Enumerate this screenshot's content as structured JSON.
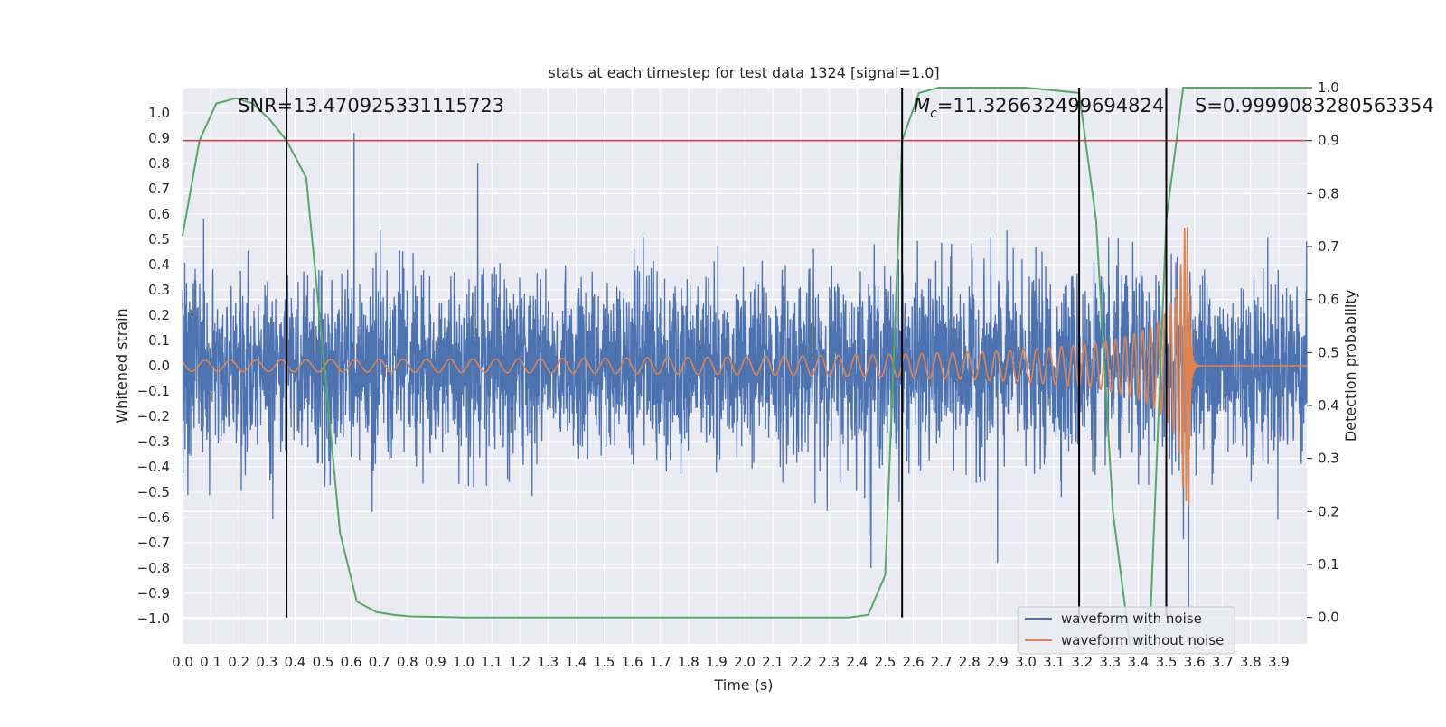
{
  "chart_data": {
    "type": "line",
    "title": "stats at each timestep for test data 1324 [signal=1.0]",
    "xlabel": "Time (s)",
    "ylabel": "Whitened strain",
    "y2label": "Detection probability",
    "xlim": [
      0.0,
      4.0
    ],
    "ylim": [
      -1.1,
      1.1
    ],
    "y2lim": [
      -0.05,
      1.0
    ],
    "xticks": [
      "0.0",
      "0.1",
      "0.2",
      "0.3",
      "0.4",
      "0.5",
      "0.6",
      "0.7",
      "0.8",
      "0.9",
      "1.0",
      "1.1",
      "1.2",
      "1.3",
      "1.4",
      "1.5",
      "1.6",
      "1.7",
      "1.8",
      "1.9",
      "2.0",
      "2.1",
      "2.2",
      "2.3",
      "2.4",
      "2.5",
      "2.6",
      "2.7",
      "2.8",
      "2.9",
      "3.0",
      "3.1",
      "3.2",
      "3.3",
      "3.4",
      "3.5",
      "3.6",
      "3.7",
      "3.8",
      "3.9"
    ],
    "yticks": [
      "1.0",
      "0.9",
      "0.8",
      "0.7",
      "0.6",
      "0.5",
      "0.4",
      "0.3",
      "0.2",
      "0.1",
      "0.0",
      "−0.1",
      "−0.2",
      "−0.3",
      "−0.4",
      "−0.5",
      "−0.6",
      "−0.7",
      "−0.8",
      "−0.9",
      "−1.0"
    ],
    "y2ticks": [
      "1.0",
      "0.9",
      "0.8",
      "0.7",
      "0.6",
      "0.5",
      "0.4",
      "0.3",
      "0.2",
      "0.1",
      "0.0"
    ],
    "grid": true,
    "legend_position": "lower-right",
    "legend": [
      "waveform with noise",
      "waveform without noise"
    ],
    "annotations": {
      "snr": "SNR=13.470925331115723",
      "mc_symbol": "M",
      "mc_sub": "c",
      "mc_value": "=11.326632499694824",
      "s": "S=0.9999083280563354"
    },
    "threshold_y2": 0.9,
    "vlines_x": [
      0.37,
      2.56,
      3.19,
      3.5
    ],
    "series": [
      {
        "name": "waveform with noise",
        "color": "#4c72b0",
        "description_style": "noise",
        "peaks": [
          [
            0.61,
            0.92
          ],
          [
            1.05,
            0.8
          ],
          [
            3.58,
            -0.98
          ],
          [
            2.45,
            -0.8
          ],
          [
            2.9,
            -0.78
          ]
        ]
      },
      {
        "name": "waveform without noise",
        "color": "#dd8452",
        "description_style": "chirp",
        "merger_time": 3.58,
        "peak_amplitude": 0.55
      },
      {
        "name": "Detection probability",
        "color": "#55a868",
        "axis": "y2",
        "x": [
          0.0,
          0.06,
          0.12,
          0.19,
          0.25,
          0.31,
          0.37,
          0.44,
          0.5,
          0.56,
          0.62,
          0.69,
          0.75,
          0.81,
          1.0,
          1.5,
          2.0,
          2.37,
          2.44,
          2.5,
          2.56,
          2.62,
          2.69,
          2.75,
          3.0,
          3.19,
          3.25,
          3.31,
          3.37,
          3.44,
          3.5,
          3.56,
          3.62,
          4.0
        ],
        "values": [
          0.72,
          0.9,
          0.97,
          0.98,
          0.97,
          0.94,
          0.9,
          0.83,
          0.5,
          0.16,
          0.03,
          0.01,
          0.005,
          0.002,
          0.0,
          0.0,
          0.0,
          0.0,
          0.005,
          0.08,
          0.9,
          0.99,
          1.0,
          1.0,
          1.0,
          0.99,
          0.75,
          0.2,
          -0.05,
          -0.05,
          0.75,
          1.0,
          1.0,
          1.0
        ]
      }
    ]
  }
}
